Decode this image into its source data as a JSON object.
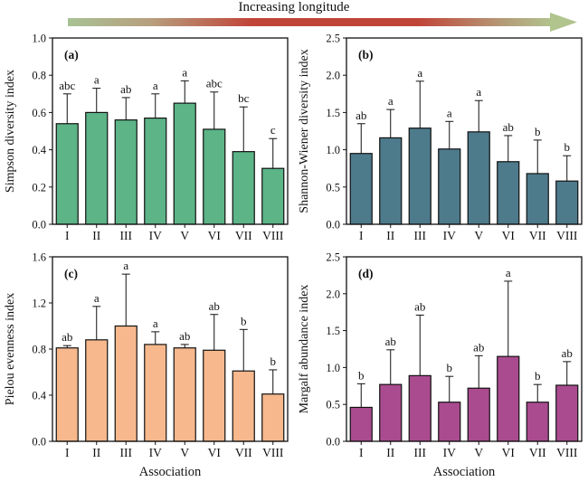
{
  "header": {
    "title": "Increasing longitude",
    "arrow_gradient": {
      "stops": [
        "#a8c294",
        "#b79f7e",
        "#c04438",
        "#c04438",
        "#b49d79",
        "#b2c48e"
      ],
      "offsets": [
        0,
        0.17,
        0.38,
        0.72,
        0.9,
        1
      ],
      "head_color": "#b2c48e"
    }
  },
  "chart_data": [
    {
      "type": "bar",
      "panel_label": "(a)",
      "ylabel": "Simpson diversity index",
      "xlabel": "",
      "ylim": [
        0,
        1.0
      ],
      "ytick_step": 0.2,
      "grid": false,
      "legend": null,
      "bar_color": "#5cb487",
      "categories": [
        "I",
        "II",
        "III",
        "IV",
        "V",
        "VI",
        "VII",
        "VIII"
      ],
      "values": [
        0.54,
        0.6,
        0.56,
        0.57,
        0.65,
        0.51,
        0.39,
        0.3
      ],
      "errors_upper": [
        0.16,
        0.13,
        0.12,
        0.13,
        0.12,
        0.2,
        0.24,
        0.16
      ],
      "sig_letters": [
        "abc",
        "a",
        "ab",
        "a",
        "a",
        "abc",
        "bc",
        "c"
      ]
    },
    {
      "type": "bar",
      "panel_label": "(b)",
      "ylabel": "Shannon-Wiener diversity index",
      "xlabel": "",
      "ylim": [
        0,
        2.5
      ],
      "ytick_step": 0.5,
      "grid": false,
      "legend": null,
      "bar_color": "#4d7b8b",
      "categories": [
        "I",
        "II",
        "III",
        "IV",
        "V",
        "VI",
        "VII",
        "VIII"
      ],
      "values": [
        0.95,
        1.16,
        1.29,
        1.01,
        1.24,
        0.84,
        0.68,
        0.58
      ],
      "errors_upper": [
        0.4,
        0.38,
        0.63,
        0.37,
        0.42,
        0.35,
        0.45,
        0.34
      ],
      "sig_letters": [
        "ab",
        "a",
        "a",
        "a",
        "a",
        "ab",
        "b",
        "b"
      ]
    },
    {
      "type": "bar",
      "panel_label": "(c)",
      "ylabel": "Pielou evenness index",
      "xlabel": "Association",
      "ylim": [
        0,
        1.6
      ],
      "ytick_step": 0.4,
      "grid": false,
      "legend": null,
      "bar_color": "#f6b88c",
      "categories": [
        "I",
        "II",
        "III",
        "IV",
        "V",
        "VI",
        "VII",
        "VIII"
      ],
      "values": [
        0.81,
        0.88,
        1.0,
        0.84,
        0.81,
        0.79,
        0.61,
        0.41
      ],
      "errors_upper": [
        0.02,
        0.29,
        0.45,
        0.11,
        0.03,
        0.31,
        0.36,
        0.21
      ],
      "sig_letters": [
        "ab",
        "a",
        "a",
        "a",
        "ab",
        "ab",
        "b",
        "b"
      ]
    },
    {
      "type": "bar",
      "panel_label": "(d)",
      "ylabel": "Margalf abundance index",
      "xlabel": "Association",
      "ylim": [
        0,
        2.5
      ],
      "ytick_step": 0.5,
      "grid": false,
      "legend": null,
      "bar_color": "#aa4b8f",
      "categories": [
        "I",
        "II",
        "III",
        "IV",
        "V",
        "VI",
        "VII",
        "VIII"
      ],
      "values": [
        0.46,
        0.77,
        0.89,
        0.53,
        0.72,
        1.15,
        0.53,
        0.76
      ],
      "errors_upper": [
        0.32,
        0.47,
        0.82,
        0.35,
        0.44,
        1.02,
        0.24,
        0.32
      ],
      "sig_letters": [
        "b",
        "ab",
        "ab",
        "b",
        "ab",
        "a",
        "b",
        "ab"
      ]
    }
  ]
}
